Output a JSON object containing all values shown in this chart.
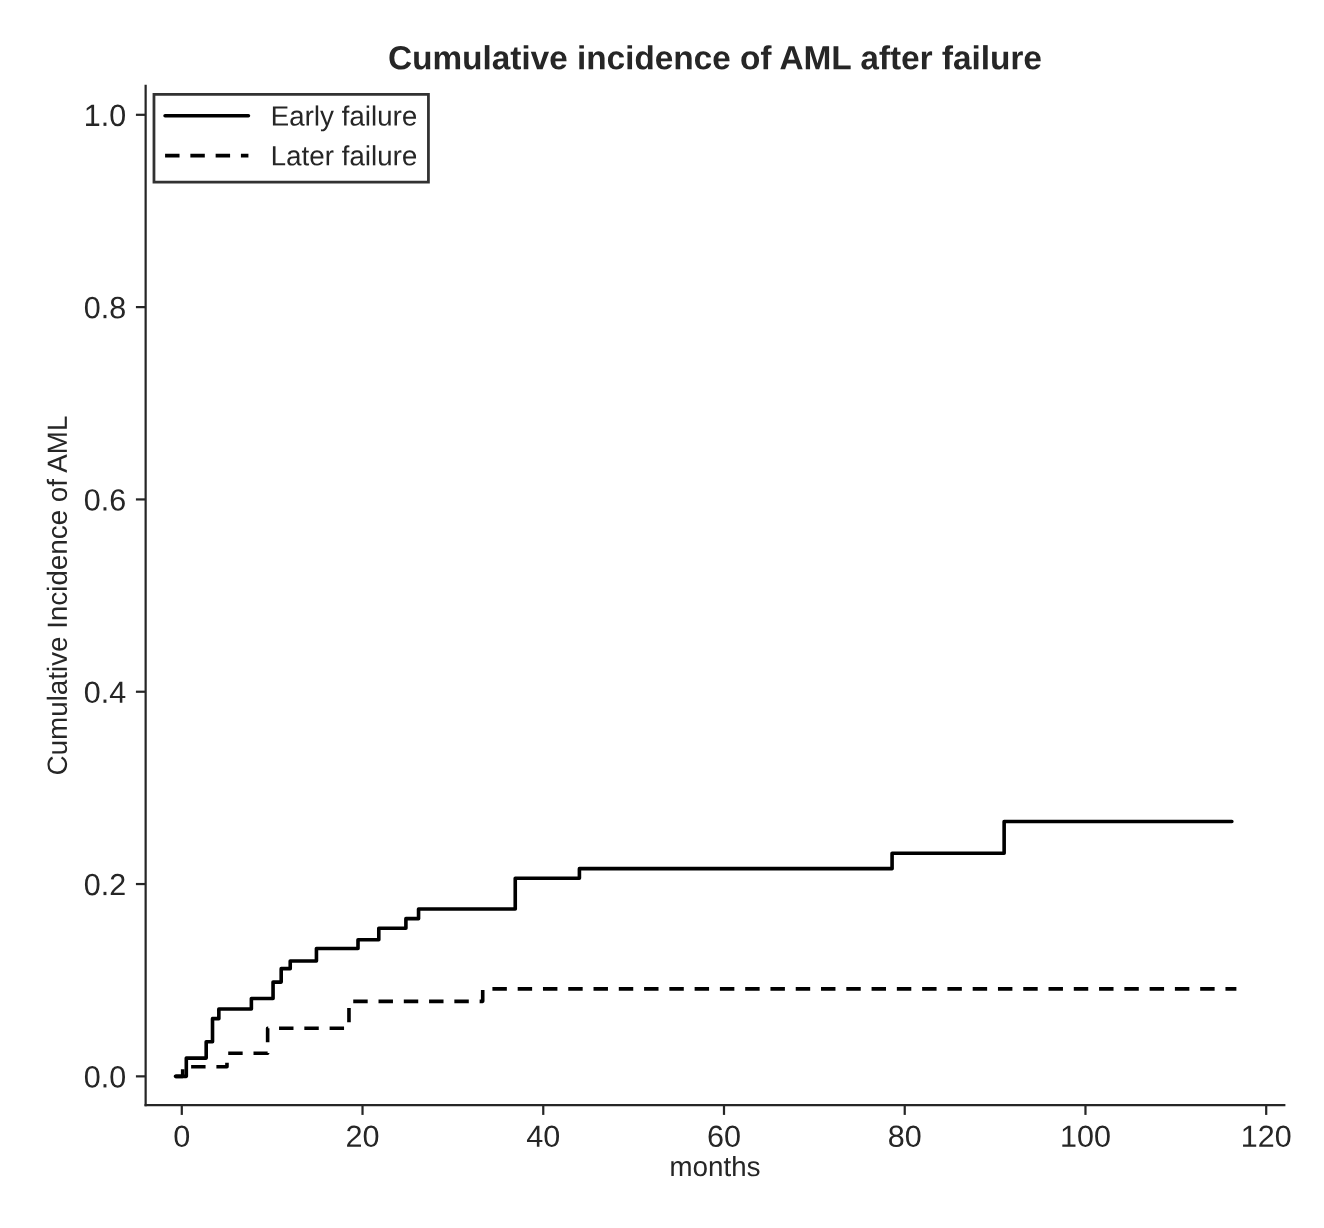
{
  "chart_data": {
    "type": "step",
    "title": "Cumulative incidence of AML after failure",
    "xlabel": "months",
    "ylabel": "Cumulative Incidence of AML",
    "xlim": [
      -4,
      122
    ],
    "ylim": [
      -0.03,
      1.03
    ],
    "xticks": [
      0,
      20,
      40,
      60,
      80,
      100,
      120
    ],
    "yticks": [
      {
        "value": 0,
        "label": "0.0"
      },
      {
        "value": 0.2,
        "label": "0.2"
      },
      {
        "value": 0.4,
        "label": "0.4"
      },
      {
        "value": 0.6,
        "label": "0.6"
      },
      {
        "value": 0.8,
        "label": "0.8"
      },
      {
        "value": 1,
        "label": "1.0"
      }
    ],
    "grid": false,
    "legend": "top left",
    "series": [
      {
        "name": "Early failure",
        "color": "#000000",
        "line_style": "solid",
        "x": [
          -0.7,
          0.5,
          2.7,
          3.4,
          4.1,
          7.7,
          10.1,
          11.0,
          12.0,
          14.9,
          19.5,
          21.8,
          24.8,
          26.2,
          36.9,
          44.0,
          78.6,
          91.0,
          116.2
        ],
        "values": [
          0.0,
          0.019,
          0.036,
          0.06,
          0.07,
          0.081,
          0.098,
          0.112,
          0.12,
          0.133,
          0.142,
          0.154,
          0.164,
          0.174,
          0.206,
          0.216,
          0.232,
          0.265,
          0.265
        ]
      },
      {
        "name": "Later failure",
        "color": "#000000",
        "line_style": "dashed",
        "x": [
          -0.7,
          0.1,
          5.0,
          9.5,
          18.5,
          33.3,
          116.7
        ],
        "values": [
          0.0,
          0.01,
          0.024,
          0.05,
          0.078,
          0.091,
          0.091
        ]
      }
    ]
  }
}
